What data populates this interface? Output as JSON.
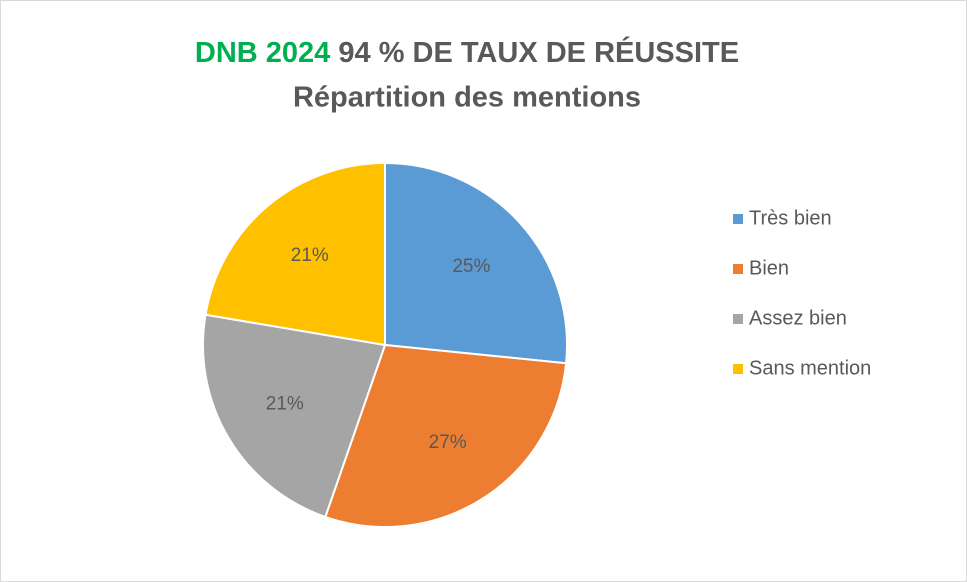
{
  "chart_data": {
    "type": "pie",
    "title": {
      "highlight": "DNB 2024",
      "highlight_color": "#00b050",
      "text": "94 % DE TAUX DE RÉUSSITE"
    },
    "subtitle": "Répartition des mentions",
    "categories": [
      "Très bien",
      "Bien",
      "Assez bien",
      "Sans mention"
    ],
    "values": [
      25,
      27,
      21,
      21
    ],
    "value_labels": [
      "25%",
      "27%",
      "21%",
      "21%"
    ],
    "colors": [
      "#5b9bd5",
      "#ed7d31",
      "#a5a5a5",
      "#ffc000"
    ],
    "legend": "right"
  }
}
